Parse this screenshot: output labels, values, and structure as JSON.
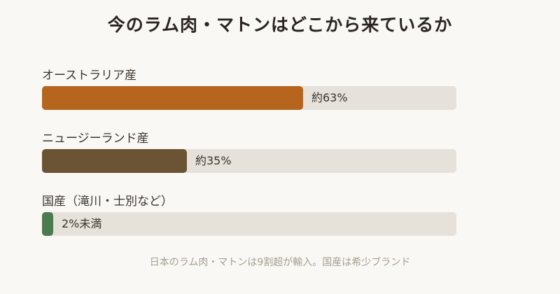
{
  "chart_data": {
    "type": "bar",
    "orientation": "horizontal",
    "title": "今のラム肉・マトンはどこから来ているか",
    "categories": [
      "オーストラリア産",
      "ニュージーランド産",
      "国産（滝川・士別など）"
    ],
    "values": [
      63,
      35,
      2
    ],
    "value_labels": [
      "約63%",
      "約35%",
      "2%未満"
    ],
    "xlim": [
      0,
      100
    ],
    "unit": "%",
    "bar_colors": [
      "#b5651d",
      "#6b5433",
      "#4a7c4e"
    ],
    "track_color": "#e6e1da",
    "grid": false,
    "legend": "none",
    "footnote": "日本のラム肉・マトンは9割超が輸入。国産は希少ブランド"
  }
}
